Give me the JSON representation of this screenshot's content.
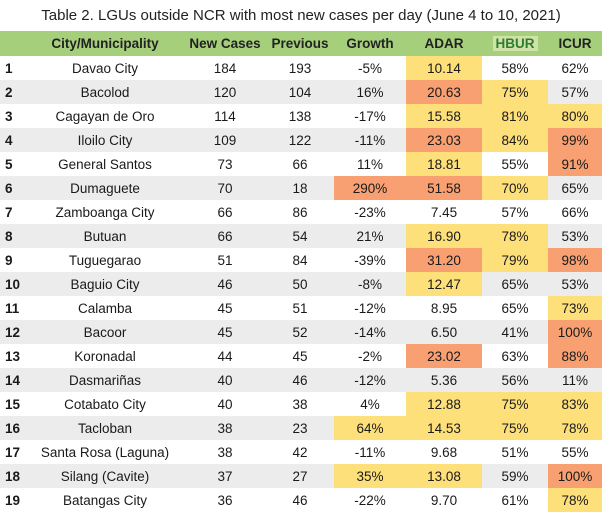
{
  "title": "Table 2. LGUs outside NCR with most new cases per day (June 4 to 10, 2021)",
  "columns": [
    "",
    "City/Municipality",
    "New Cases",
    "Previous",
    "Growth",
    "ADAR",
    "HBUR",
    "ICUR"
  ],
  "colors": {
    "header_green": "#a6cf7c",
    "row_gray": "#ececec",
    "yellow": "#fde07a",
    "orange": "#f8a072"
  },
  "rows": [
    {
      "no": "1",
      "city": "Davao City",
      "new": "184",
      "prev": "193",
      "growth": "-5%",
      "adar": "10.14",
      "hbur": "58%",
      "icur": "62%",
      "hl": {
        "adar": "y"
      }
    },
    {
      "no": "2",
      "city": "Bacolod",
      "new": "120",
      "prev": "104",
      "growth": "16%",
      "adar": "20.63",
      "hbur": "75%",
      "icur": "57%",
      "hl": {
        "adar": "o",
        "hbur": "y"
      }
    },
    {
      "no": "3",
      "city": "Cagayan de Oro",
      "new": "114",
      "prev": "138",
      "growth": "-17%",
      "adar": "15.58",
      "hbur": "81%",
      "icur": "80%",
      "hl": {
        "adar": "y",
        "hbur": "y",
        "icur": "y"
      }
    },
    {
      "no": "4",
      "city": "Iloilo City",
      "new": "109",
      "prev": "122",
      "growth": "-11%",
      "adar": "23.03",
      "hbur": "84%",
      "icur": "99%",
      "hl": {
        "adar": "o",
        "hbur": "y",
        "icur": "o"
      }
    },
    {
      "no": "5",
      "city": "General Santos",
      "new": "73",
      "prev": "66",
      "growth": "11%",
      "adar": "18.81",
      "hbur": "55%",
      "icur": "91%",
      "hl": {
        "adar": "y",
        "icur": "o"
      }
    },
    {
      "no": "6",
      "city": "Dumaguete",
      "new": "70",
      "prev": "18",
      "growth": "290%",
      "adar": "51.58",
      "hbur": "70%",
      "icur": "65%",
      "hl": {
        "growth": "o",
        "adar": "o",
        "hbur": "y"
      }
    },
    {
      "no": "7",
      "city": "Zamboanga City",
      "new": "66",
      "prev": "86",
      "growth": "-23%",
      "adar": "7.45",
      "hbur": "57%",
      "icur": "66%",
      "hl": {}
    },
    {
      "no": "8",
      "city": "Butuan",
      "new": "66",
      "prev": "54",
      "growth": "21%",
      "adar": "16.90",
      "hbur": "78%",
      "icur": "53%",
      "hl": {
        "adar": "y",
        "hbur": "y"
      }
    },
    {
      "no": "9",
      "city": "Tuguegarao",
      "new": "51",
      "prev": "84",
      "growth": "-39%",
      "adar": "31.20",
      "hbur": "79%",
      "icur": "98%",
      "hl": {
        "adar": "o",
        "hbur": "y",
        "icur": "o"
      }
    },
    {
      "no": "10",
      "city": "Baguio City",
      "new": "46",
      "prev": "50",
      "growth": "-8%",
      "adar": "12.47",
      "hbur": "65%",
      "icur": "53%",
      "hl": {
        "adar": "y"
      }
    },
    {
      "no": "11",
      "city": "Calamba",
      "new": "45",
      "prev": "51",
      "growth": "-12%",
      "adar": "8.95",
      "hbur": "65%",
      "icur": "73%",
      "hl": {
        "icur": "y"
      }
    },
    {
      "no": "12",
      "city": "Bacoor",
      "new": "45",
      "prev": "52",
      "growth": "-14%",
      "adar": "6.50",
      "hbur": "41%",
      "icur": "100%",
      "hl": {
        "icur": "o"
      }
    },
    {
      "no": "13",
      "city": "Koronadal",
      "new": "44",
      "prev": "45",
      "growth": "-2%",
      "adar": "23.02",
      "hbur": "63%",
      "icur": "88%",
      "hl": {
        "adar": "o",
        "icur": "o"
      }
    },
    {
      "no": "14",
      "city": "Dasmariñas",
      "new": "40",
      "prev": "46",
      "growth": "-12%",
      "adar": "5.36",
      "hbur": "56%",
      "icur": "11%",
      "hl": {}
    },
    {
      "no": "15",
      "city": "Cotabato City",
      "new": "40",
      "prev": "38",
      "growth": "4%",
      "adar": "12.88",
      "hbur": "75%",
      "icur": "83%",
      "hl": {
        "adar": "y",
        "hbur": "y",
        "icur": "y"
      }
    },
    {
      "no": "16",
      "city": "Tacloban",
      "new": "38",
      "prev": "23",
      "growth": "64%",
      "adar": "14.53",
      "hbur": "75%",
      "icur": "78%",
      "hl": {
        "growth": "y",
        "adar": "y",
        "hbur": "y",
        "icur": "y"
      }
    },
    {
      "no": "17",
      "city": "Santa Rosa (Laguna)",
      "new": "38",
      "prev": "42",
      "growth": "-11%",
      "adar": "9.68",
      "hbur": "51%",
      "icur": "55%",
      "hl": {}
    },
    {
      "no": "18",
      "city": "Silang (Cavite)",
      "new": "37",
      "prev": "27",
      "growth": "35%",
      "adar": "13.08",
      "hbur": "59%",
      "icur": "100%",
      "hl": {
        "growth": "y",
        "adar": "y",
        "icur": "o"
      }
    },
    {
      "no": "19",
      "city": "Batangas City",
      "new": "36",
      "prev": "46",
      "growth": "-22%",
      "adar": "9.70",
      "hbur": "61%",
      "icur": "78%",
      "hl": {
        "icur": "y"
      }
    }
  ]
}
